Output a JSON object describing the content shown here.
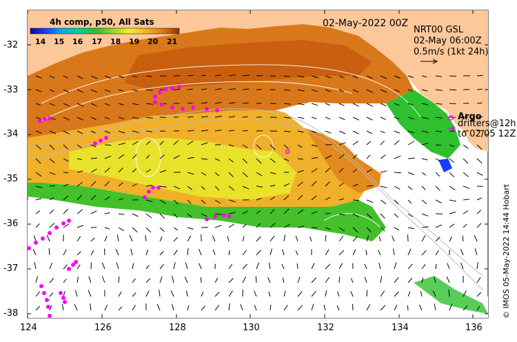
{
  "map": {
    "date_title": "02-May-2022 00Z",
    "product": {
      "line1": "NRT00 GSL",
      "line2": "02-May 06:00Z",
      "line3": "0.5m/s (1kt 24h)"
    },
    "colorbar": {
      "title": "4h comp, p50, All Sats",
      "ticks": [
        "14",
        "15",
        "16",
        "17",
        "18",
        "19",
        "20",
        "21"
      ],
      "colors": [
        "#0a0a9a",
        "#1a3cff",
        "#00a5ff",
        "#00d2a0",
        "#2ec02e",
        "#8fd62a",
        "#f2ef2a",
        "#f6bf2a",
        "#e38a1e",
        "#c55a0e",
        "#9a2a0a"
      ]
    },
    "legend": {
      "argo_label": "Argo",
      "drifter_line1": "drifters@12h",
      "drifter_line2": "to 02/05 12Z",
      "argo_color": "#ff00ff"
    },
    "x_axis": {
      "ticks": [
        "124",
        "126",
        "128",
        "130",
        "132",
        "134",
        "136"
      ],
      "range": [
        124,
        136.4
      ]
    },
    "y_axis": {
      "ticks": [
        "-32",
        "-33",
        "-34",
        "-35",
        "-36",
        "-37",
        "-38"
      ],
      "range": [
        -38.1,
        -31.4
      ]
    },
    "credit": "© IMOS 05-May-2022 14:44 Hobart",
    "land_color": "#fcc89a",
    "cloud_color": "#ffffff"
  }
}
